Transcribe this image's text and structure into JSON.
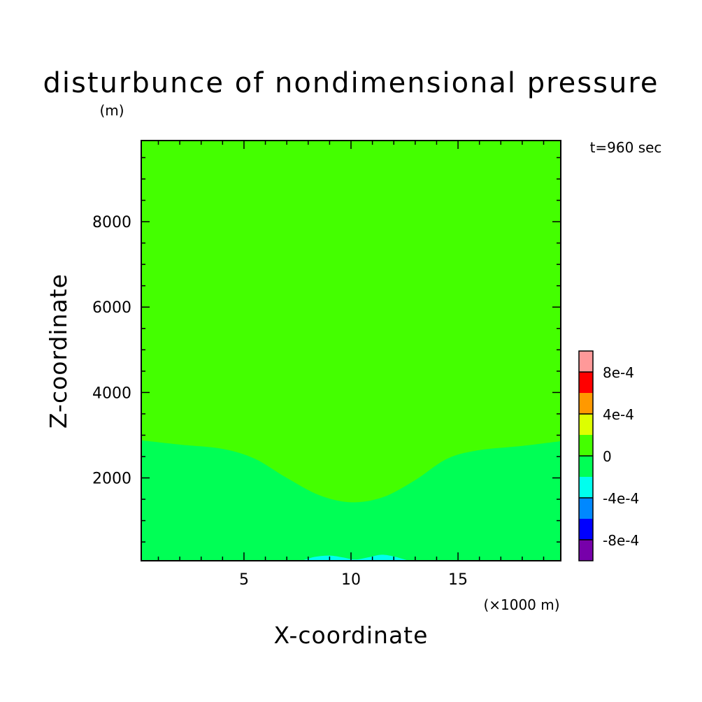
{
  "chart_data": {
    "type": "contour",
    "title": "disturbunce of nondimensional pressure",
    "ylabel": "Z-coordinate",
    "yunit": "(m)",
    "xlabel": "X-coordinate",
    "xunit": "(×1000 m)",
    "time_label": "t=960 sec",
    "xlim": [
      0.2,
      19.8
    ],
    "ylim": [
      60,
      9900
    ],
    "xticks": [
      5,
      10,
      15
    ],
    "yticks": [
      2000,
      4000,
      6000,
      8000
    ],
    "xtick_labels": [
      "5",
      "10",
      "15"
    ],
    "ytick_labels": [
      "2000",
      "4000",
      "6000",
      "8000"
    ],
    "x_minor_step": 1,
    "y_minor_step": 500,
    "background_level_color": "#44FF00",
    "regions": [
      {
        "level": "(-2e-4, 0]",
        "color": "#00FF55",
        "boundary_top": [
          [
            0.2,
            2880
          ],
          [
            2,
            2780
          ],
          [
            4,
            2680
          ],
          [
            5.5,
            2450
          ],
          [
            7,
            2000
          ],
          [
            8.5,
            1600
          ],
          [
            10,
            1430
          ],
          [
            11.5,
            1550
          ],
          [
            13,
            1950
          ],
          [
            14.5,
            2450
          ],
          [
            16,
            2650
          ],
          [
            18,
            2750
          ],
          [
            19.8,
            2860
          ]
        ]
      },
      {
        "level": "(-4e-4, -2e-4]",
        "color": "#00FFEE",
        "boundary_top": [
          [
            7.7,
            60
          ],
          [
            8.3,
            150
          ],
          [
            9,
            180
          ],
          [
            9.6,
            140
          ],
          [
            10.2,
            90
          ],
          [
            10.8,
            140
          ],
          [
            11.4,
            200
          ],
          [
            12,
            160
          ],
          [
            12.7,
            60
          ]
        ]
      }
    ],
    "colorbar": {
      "labels": [
        "8e-4",
        "4e-4",
        "0",
        "-4e-4",
        "-8e-4"
      ],
      "colors": [
        "#FF9999",
        "#FF0000",
        "#FF9900",
        "#DDFF00",
        "#44FF00",
        "#00FF55",
        "#00FFEE",
        "#0088FF",
        "#0000FF",
        "#7700AA"
      ]
    }
  }
}
